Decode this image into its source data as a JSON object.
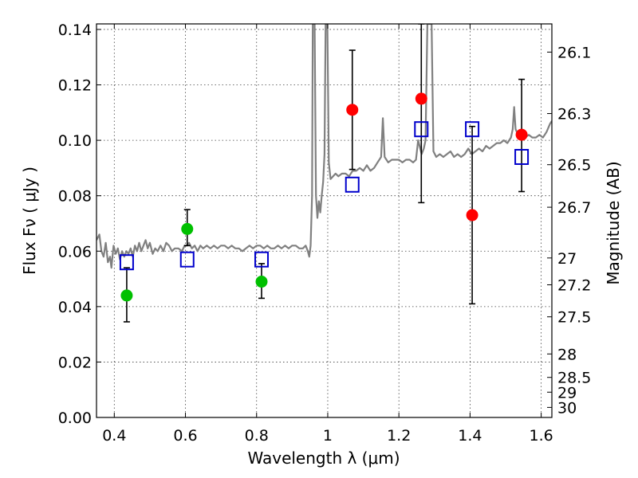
{
  "chart_data": {
    "type": "scatter",
    "title": "",
    "xlabel": "Wavelength  λ (μm)",
    "ylabel": "Flux  Fν  ( μJy )",
    "ylabel_right": "Magnitude (AB)",
    "xlim": [
      0.35,
      1.63
    ],
    "ylim": [
      0.0,
      0.142
    ],
    "grid": true,
    "x_ticks": [
      {
        "value": 0.4,
        "label": "0.4"
      },
      {
        "value": 0.6,
        "label": "0.6"
      },
      {
        "value": 0.8,
        "label": "0.8"
      },
      {
        "value": 1.0,
        "label": "1"
      },
      {
        "value": 1.2,
        "label": "1.2"
      },
      {
        "value": 1.4,
        "label": "1.4"
      },
      {
        "value": 1.6,
        "label": "1.6"
      }
    ],
    "y_ticks": [
      {
        "value": 0.0,
        "label": "0.00"
      },
      {
        "value": 0.02,
        "label": "0.02"
      },
      {
        "value": 0.04,
        "label": "0.04"
      },
      {
        "value": 0.06,
        "label": "0.06"
      },
      {
        "value": 0.08,
        "label": "0.08"
      },
      {
        "value": 0.1,
        "label": "0.10"
      },
      {
        "value": 0.12,
        "label": "0.12"
      },
      {
        "value": 0.14,
        "label": "0.14"
      }
    ],
    "right_ticks": [
      {
        "value": 26.1,
        "label": "26.1"
      },
      {
        "value": 26.3,
        "label": "26.3"
      },
      {
        "value": 26.5,
        "label": "26.5"
      },
      {
        "value": 26.7,
        "label": "26.7"
      },
      {
        "value": 27.0,
        "label": "27"
      },
      {
        "value": 27.2,
        "label": "27.2"
      },
      {
        "value": 27.5,
        "label": "27.5"
      },
      {
        "value": 28.0,
        "label": "28"
      },
      {
        "value": 28.5,
        "label": "28.5"
      },
      {
        "value": 29.0,
        "label": "29"
      },
      {
        "value": 30.0,
        "label": "30"
      }
    ],
    "series": [
      {
        "name": "template-spectrum",
        "style": "line",
        "color": "#808080",
        "points": [
          [
            0.35,
            0.064
          ],
          [
            0.358,
            0.066
          ],
          [
            0.364,
            0.06
          ],
          [
            0.37,
            0.058
          ],
          [
            0.376,
            0.063
          ],
          [
            0.382,
            0.056
          ],
          [
            0.388,
            0.058
          ],
          [
            0.392,
            0.054
          ],
          [
            0.398,
            0.062
          ],
          [
            0.404,
            0.059
          ],
          [
            0.41,
            0.061
          ],
          [
            0.416,
            0.057
          ],
          [
            0.422,
            0.06
          ],
          [
            0.428,
            0.058
          ],
          [
            0.434,
            0.06
          ],
          [
            0.44,
            0.059
          ],
          [
            0.446,
            0.061
          ],
          [
            0.452,
            0.058
          ],
          [
            0.458,
            0.062
          ],
          [
            0.464,
            0.06
          ],
          [
            0.47,
            0.063
          ],
          [
            0.476,
            0.06
          ],
          [
            0.482,
            0.062
          ],
          [
            0.488,
            0.064
          ],
          [
            0.494,
            0.061
          ],
          [
            0.5,
            0.063
          ],
          [
            0.508,
            0.059
          ],
          [
            0.515,
            0.061
          ],
          [
            0.522,
            0.06
          ],
          [
            0.53,
            0.062
          ],
          [
            0.538,
            0.06
          ],
          [
            0.546,
            0.063
          ],
          [
            0.554,
            0.062
          ],
          [
            0.562,
            0.06
          ],
          [
            0.57,
            0.061
          ],
          [
            0.58,
            0.061
          ],
          [
            0.59,
            0.06
          ],
          [
            0.598,
            0.062
          ],
          [
            0.604,
            0.062
          ],
          [
            0.61,
            0.063
          ],
          [
            0.618,
            0.061
          ],
          [
            0.626,
            0.062
          ],
          [
            0.634,
            0.06
          ],
          [
            0.642,
            0.062
          ],
          [
            0.65,
            0.061
          ],
          [
            0.66,
            0.062
          ],
          [
            0.67,
            0.061
          ],
          [
            0.68,
            0.062
          ],
          [
            0.69,
            0.061
          ],
          [
            0.7,
            0.062
          ],
          [
            0.71,
            0.062
          ],
          [
            0.72,
            0.061
          ],
          [
            0.73,
            0.062
          ],
          [
            0.74,
            0.061
          ],
          [
            0.75,
            0.061
          ],
          [
            0.76,
            0.06
          ],
          [
            0.77,
            0.061
          ],
          [
            0.78,
            0.062
          ],
          [
            0.79,
            0.061
          ],
          [
            0.8,
            0.062
          ],
          [
            0.81,
            0.062
          ],
          [
            0.82,
            0.061
          ],
          [
            0.83,
            0.062
          ],
          [
            0.84,
            0.061
          ],
          [
            0.85,
            0.061
          ],
          [
            0.86,
            0.062
          ],
          [
            0.87,
            0.061
          ],
          [
            0.88,
            0.062
          ],
          [
            0.89,
            0.061
          ],
          [
            0.9,
            0.062
          ],
          [
            0.91,
            0.062
          ],
          [
            0.92,
            0.061
          ],
          [
            0.93,
            0.061
          ],
          [
            0.938,
            0.062
          ],
          [
            0.944,
            0.06
          ],
          [
            0.948,
            0.058
          ],
          [
            0.952,
            0.062
          ],
          [
            0.956,
            0.08
          ],
          [
            0.958,
            0.142
          ],
          [
            0.963,
            0.142
          ],
          [
            0.967,
            0.08
          ],
          [
            0.971,
            0.072
          ],
          [
            0.975,
            0.078
          ],
          [
            0.979,
            0.074
          ],
          [
            0.983,
            0.08
          ],
          [
            0.987,
            0.085
          ],
          [
            0.991,
            0.095
          ],
          [
            0.994,
            0.142
          ],
          [
            0.999,
            0.142
          ],
          [
            1.003,
            0.092
          ],
          [
            1.008,
            0.086
          ],
          [
            1.015,
            0.087
          ],
          [
            1.022,
            0.088
          ],
          [
            1.03,
            0.087
          ],
          [
            1.04,
            0.088
          ],
          [
            1.05,
            0.088
          ],
          [
            1.06,
            0.087
          ],
          [
            1.07,
            0.089
          ],
          [
            1.08,
            0.089
          ],
          [
            1.09,
            0.09
          ],
          [
            1.1,
            0.089
          ],
          [
            1.11,
            0.091
          ],
          [
            1.12,
            0.089
          ],
          [
            1.13,
            0.09
          ],
          [
            1.14,
            0.092
          ],
          [
            1.15,
            0.094
          ],
          [
            1.155,
            0.108
          ],
          [
            1.16,
            0.094
          ],
          [
            1.17,
            0.092
          ],
          [
            1.18,
            0.093
          ],
          [
            1.19,
            0.093
          ],
          [
            1.2,
            0.093
          ],
          [
            1.21,
            0.092
          ],
          [
            1.22,
            0.093
          ],
          [
            1.23,
            0.093
          ],
          [
            1.24,
            0.092
          ],
          [
            1.248,
            0.093
          ],
          [
            1.254,
            0.1
          ],
          [
            1.258,
            0.098
          ],
          [
            1.264,
            0.095
          ],
          [
            1.27,
            0.097
          ],
          [
            1.275,
            0.1
          ],
          [
            1.28,
            0.142
          ],
          [
            1.292,
            0.142
          ],
          [
            1.297,
            0.096
          ],
          [
            1.305,
            0.094
          ],
          [
            1.315,
            0.095
          ],
          [
            1.325,
            0.094
          ],
          [
            1.335,
            0.095
          ],
          [
            1.345,
            0.096
          ],
          [
            1.355,
            0.094
          ],
          [
            1.365,
            0.095
          ],
          [
            1.375,
            0.094
          ],
          [
            1.385,
            0.095
          ],
          [
            1.395,
            0.097
          ],
          [
            1.405,
            0.095
          ],
          [
            1.415,
            0.096
          ],
          [
            1.425,
            0.097
          ],
          [
            1.435,
            0.096
          ],
          [
            1.445,
            0.098
          ],
          [
            1.455,
            0.097
          ],
          [
            1.465,
            0.098
          ],
          [
            1.475,
            0.099
          ],
          [
            1.485,
            0.099
          ],
          [
            1.495,
            0.1
          ],
          [
            1.505,
            0.099
          ],
          [
            1.515,
            0.101
          ],
          [
            1.52,
            0.104
          ],
          [
            1.524,
            0.112
          ],
          [
            1.528,
            0.104
          ],
          [
            1.535,
            0.102
          ],
          [
            1.545,
            0.101
          ],
          [
            1.555,
            0.101
          ],
          [
            1.565,
            0.102
          ],
          [
            1.575,
            0.101
          ],
          [
            1.585,
            0.101
          ],
          [
            1.595,
            0.102
          ],
          [
            1.605,
            0.101
          ],
          [
            1.615,
            0.103
          ],
          [
            1.625,
            0.106
          ],
          [
            1.63,
            0.107
          ]
        ]
      },
      {
        "name": "green-photometry",
        "style": "marker-circle",
        "color": "#00c000",
        "points": [
          {
            "x": 0.435,
            "y": 0.044,
            "err_low": 0.0345,
            "err_high": 0.054
          },
          {
            "x": 0.605,
            "y": 0.068,
            "err_low": 0.062,
            "err_high": 0.075
          },
          {
            "x": 0.814,
            "y": 0.049,
            "err_low": 0.043,
            "err_high": 0.0555
          }
        ]
      },
      {
        "name": "red-photometry",
        "style": "marker-circle",
        "color": "#ff0000",
        "points": [
          {
            "x": 1.069,
            "y": 0.111,
            "err_low": 0.0895,
            "err_high": 0.1325
          },
          {
            "x": 1.263,
            "y": 0.115,
            "err_low": 0.0775,
            "err_high": 0.142
          },
          {
            "x": 1.406,
            "y": 0.073,
            "err_low": 0.041,
            "err_high": 0.105
          },
          {
            "x": 1.545,
            "y": 0.102,
            "err_low": 0.0815,
            "err_high": 0.122
          }
        ]
      },
      {
        "name": "model-synthetic-photometry",
        "style": "marker-square-open",
        "color": "#0000cc",
        "points": [
          {
            "x": 0.435,
            "y": 0.056
          },
          {
            "x": 0.605,
            "y": 0.057
          },
          {
            "x": 0.814,
            "y": 0.057
          },
          {
            "x": 1.069,
            "y": 0.084
          },
          {
            "x": 1.263,
            "y": 0.104
          },
          {
            "x": 1.406,
            "y": 0.104
          },
          {
            "x": 1.545,
            "y": 0.094
          }
        ]
      }
    ]
  }
}
